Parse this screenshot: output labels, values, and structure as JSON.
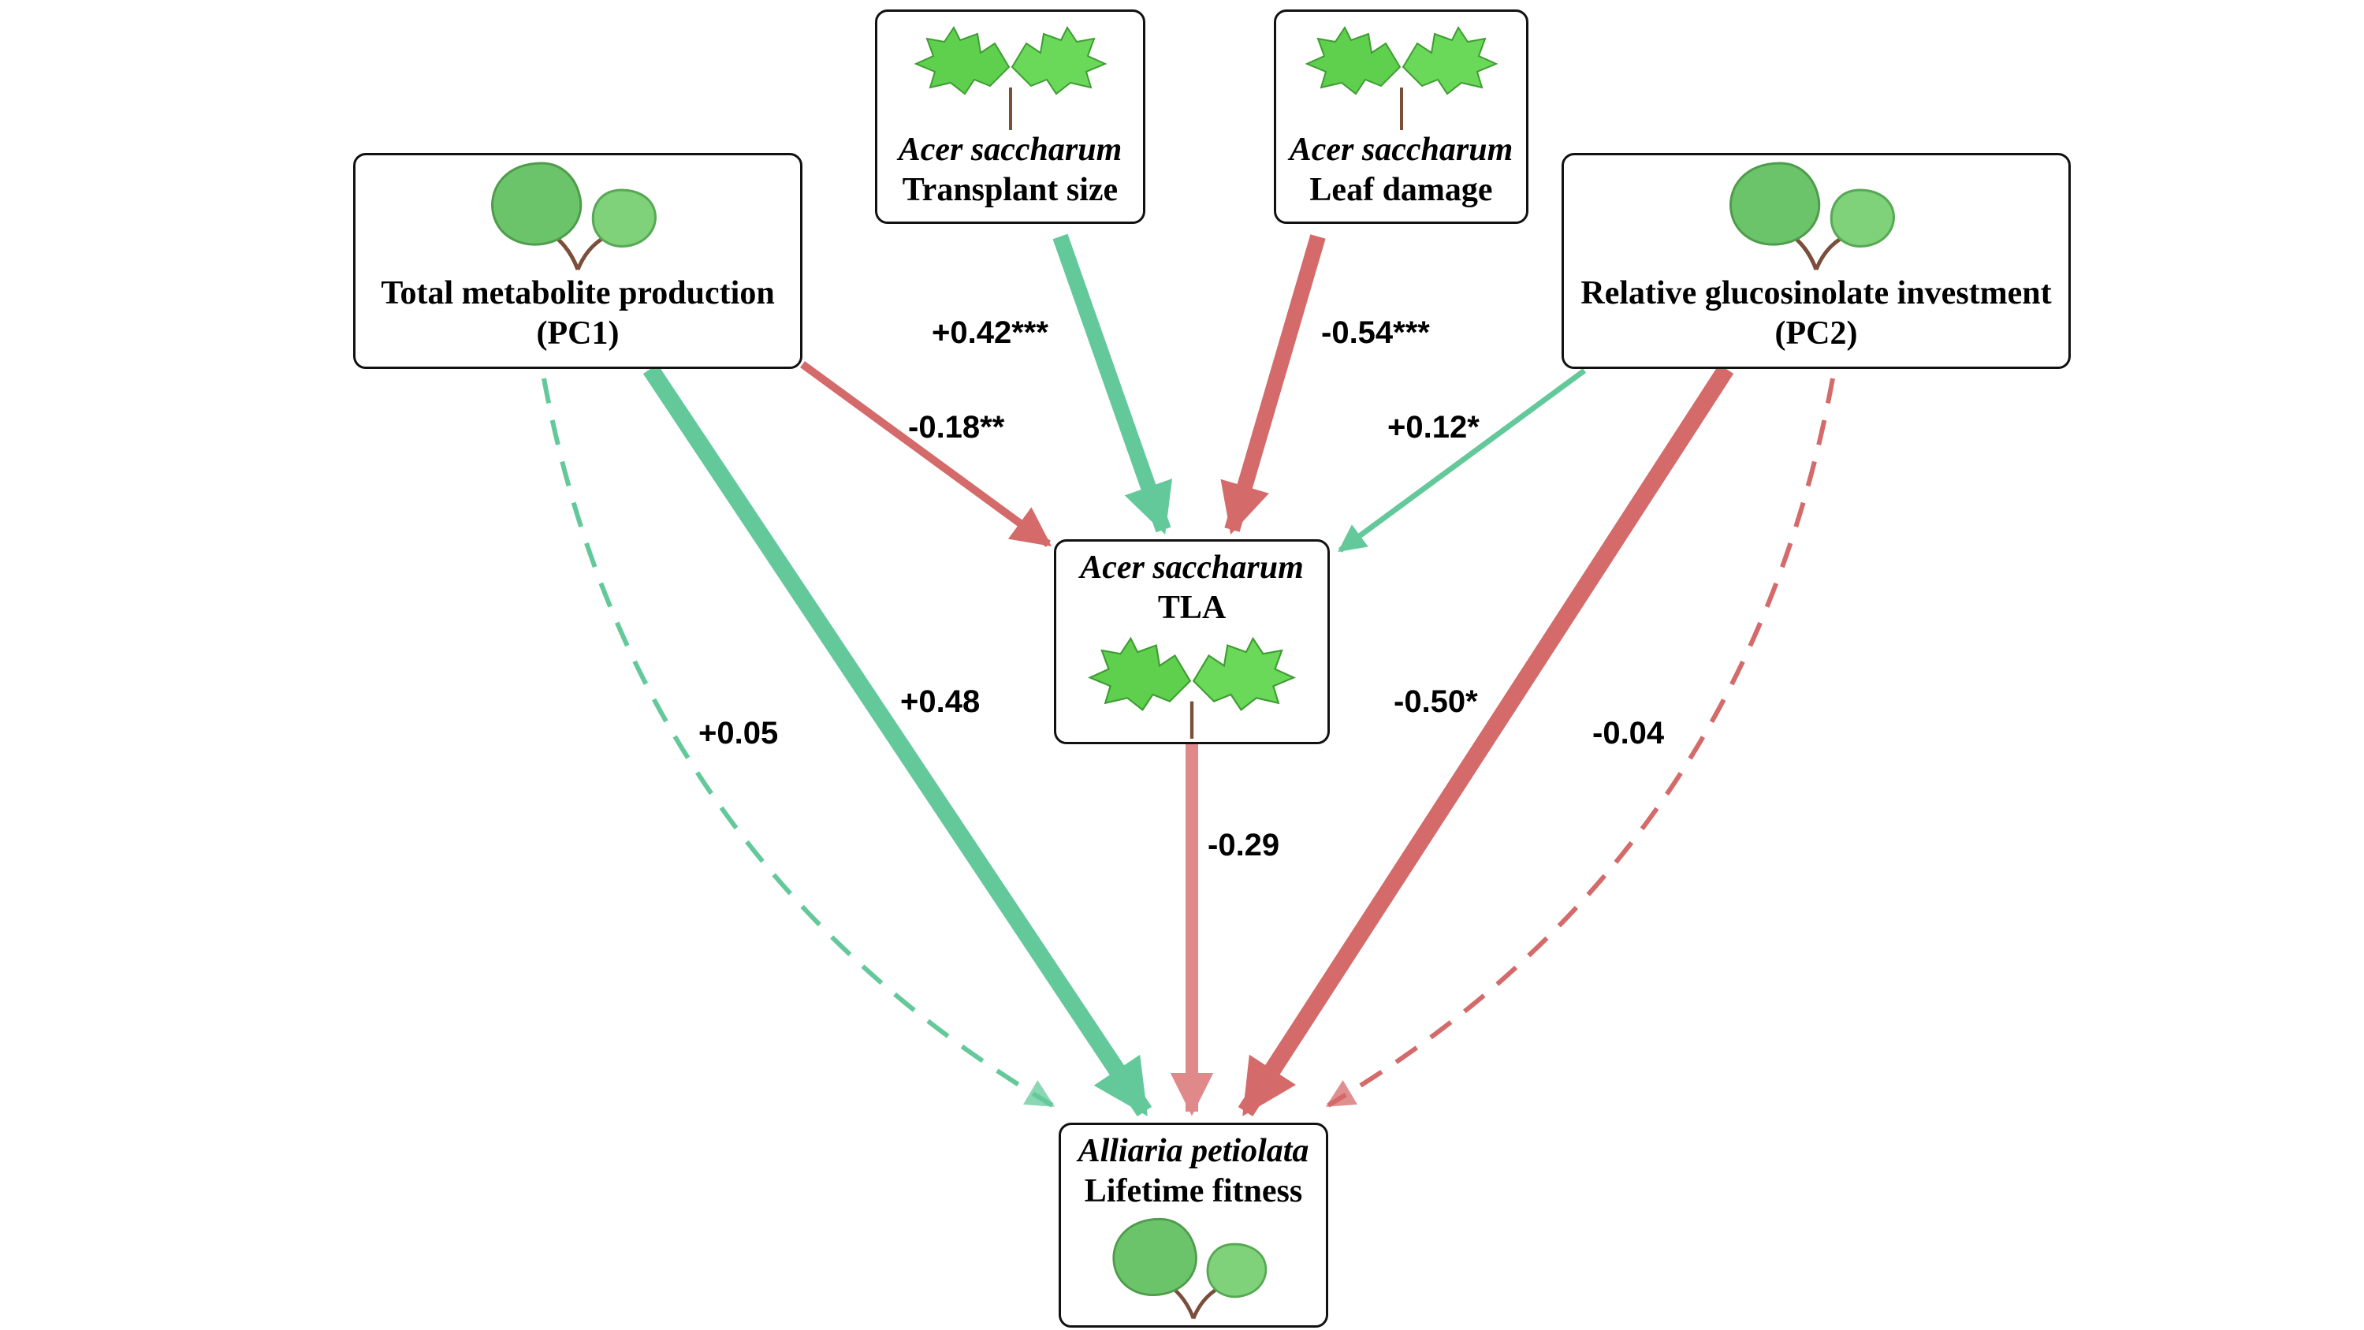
{
  "colors": {
    "positive": "#64c99a",
    "negative": "#d46a6a",
    "negative_light": "#e0898a",
    "border": "#111111"
  },
  "icons": {
    "garlic_mustard": "garlic-mustard-leaves-icon",
    "maple": "sugar-maple-seedling-icon"
  },
  "nodes": {
    "total_metabolite": {
      "line1": "Total metabolite production",
      "line2": "(PC1)"
    },
    "relative_glucosinolate": {
      "line1": "Relative glucosinolate investment",
      "line2": "(PC2)"
    },
    "transplant_size": {
      "species": "Acer saccharum",
      "line2": "Transplant size"
    },
    "leaf_damage": {
      "species": "Acer saccharum",
      "line2": "Leaf damage"
    },
    "tla": {
      "species": "Acer saccharum",
      "line2": "TLA"
    },
    "fitness": {
      "species": "Alliaria petiolata",
      "line2": "Lifetime fitness"
    }
  },
  "edges": [
    {
      "id": "ts_tla",
      "label": "+0.42***",
      "sign": "positive",
      "style": "solid"
    },
    {
      "id": "ld_tla",
      "label": "-0.54***",
      "sign": "negative",
      "style": "solid"
    },
    {
      "id": "tms_tla",
      "label": "-0.18**",
      "sign": "negative",
      "style": "solid"
    },
    {
      "id": "rgi_tla",
      "label": "+0.12*",
      "sign": "positive",
      "style": "solid"
    },
    {
      "id": "tms_fit",
      "label": "+0.48",
      "sign": "positive",
      "style": "solid"
    },
    {
      "id": "tms_fit_dashed",
      "label": "+0.05",
      "sign": "positive",
      "style": "dashed"
    },
    {
      "id": "tla_fit",
      "label": "-0.29",
      "sign": "negative",
      "style": "solid"
    },
    {
      "id": "rgi_fit",
      "label": "-0.50*",
      "sign": "negative",
      "style": "solid"
    },
    {
      "id": "rgi_fit_dashed",
      "label": "-0.04",
      "sign": "negative",
      "style": "dashed"
    }
  ]
}
